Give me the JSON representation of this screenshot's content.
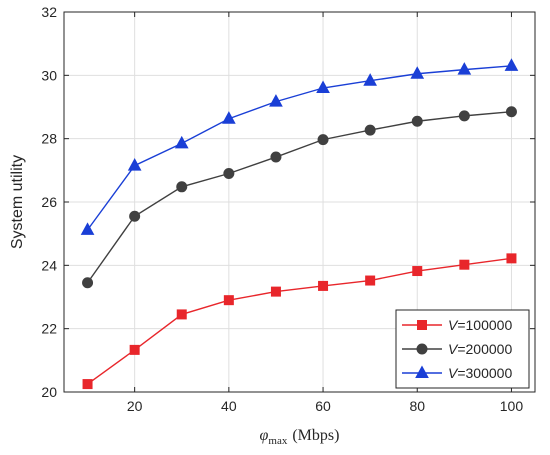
{
  "chart_data": {
    "type": "line",
    "x": [
      10,
      20,
      30,
      40,
      50,
      60,
      70,
      80,
      90,
      100
    ],
    "series": [
      {
        "name": "V=100000",
        "legend_var": "V",
        "legend_value": "=100000",
        "color": "#e8262b",
        "marker": "square",
        "values": [
          20.25,
          21.33,
          22.45,
          22.9,
          23.17,
          23.35,
          23.52,
          23.82,
          24.02,
          24.22
        ]
      },
      {
        "name": "V=200000",
        "legend_var": "V",
        "legend_value": "=200000",
        "color": "#404040",
        "marker": "circle",
        "values": [
          23.45,
          25.55,
          26.48,
          26.9,
          27.42,
          27.97,
          28.27,
          28.55,
          28.72,
          28.85
        ]
      },
      {
        "name": "V=300000",
        "legend_var": "V",
        "legend_value": "=300000",
        "color": "#1a3fd6",
        "marker": "triangle",
        "values": [
          25.12,
          27.15,
          27.85,
          28.63,
          29.17,
          29.6,
          29.83,
          30.05,
          30.18,
          30.3
        ]
      }
    ],
    "xlabel": {
      "symbol": "φ",
      "subscript": "max",
      "unit": "(Mbps)"
    },
    "ylabel": "System utility",
    "xlim": [
      5,
      105
    ],
    "ylim": [
      20,
      32
    ],
    "xticks": [
      20,
      40,
      60,
      80,
      100
    ],
    "yticks": [
      20,
      22,
      24,
      26,
      28,
      30,
      32
    ],
    "grid": true,
    "legend_position": "bottom-right"
  }
}
